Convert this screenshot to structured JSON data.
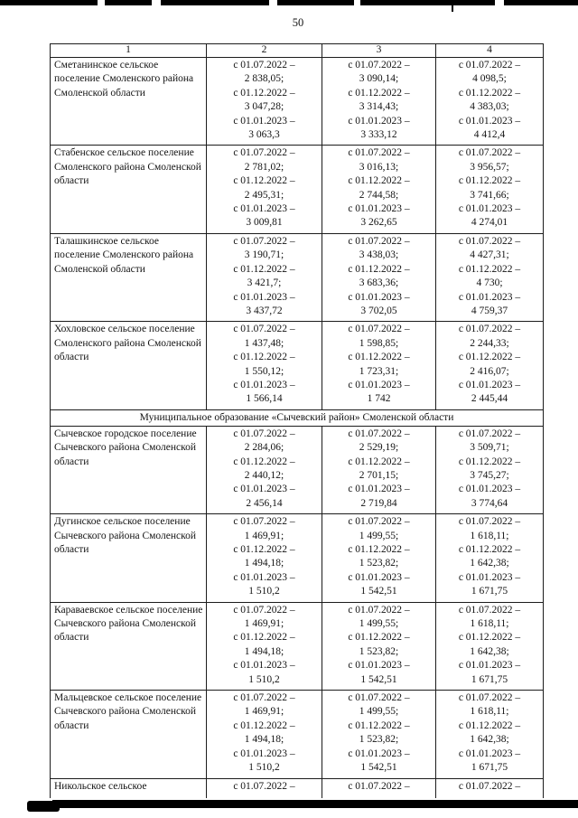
{
  "page": {
    "number": "50"
  },
  "table": {
    "headers": [
      "1",
      "2",
      "3",
      "4"
    ],
    "sections": [
      {
        "title": null,
        "rows": [
          {
            "name": "Сметанинское сельское поселение Смоленского района Смоленской области",
            "cells": [
              [
                "с 01.07.2022 –",
                "2 838,05;",
                "с 01.12.2022 –",
                "3 047,28;",
                "с 01.01.2023 –",
                "3 063,3"
              ],
              [
                "с 01.07.2022 –",
                "3 090,14;",
                "с 01.12.2022 –",
                "3 314,43;",
                "с 01.01.2023 –",
                "3 333,12"
              ],
              [
                "с 01.07.2022 –",
                "4 098,5;",
                "с 01.12.2022 –",
                "4 383,03;",
                "с 01.01.2023 –",
                "4 412,4"
              ]
            ]
          },
          {
            "name": "Стабенское сельское поселение Смоленского района Смоленской области",
            "cells": [
              [
                "с 01.07.2022 –",
                "2 781,02;",
                "с 01.12.2022 –",
                "2 495,31;",
                "с 01.01.2023 –",
                "3 009,81"
              ],
              [
                "с 01.07.2022 –",
                "3 016,13;",
                "с 01.12.2022 –",
                "2 744,58;",
                "с 01.01.2023 –",
                "3 262,65"
              ],
              [
                "с 01.07.2022 –",
                "3 956,57;",
                "с 01.12.2022 –",
                "3 741,66;",
                "с 01.01.2023 –",
                "4 274,01"
              ]
            ]
          },
          {
            "name": "Талашкинское сельское поселение Смоленского района Смоленской области",
            "cells": [
              [
                "с 01.07.2022 –",
                "3 190,71;",
                "с 01.12.2022 –",
                "3 421,7;",
                "с 01.01.2023 –",
                "3 437,72"
              ],
              [
                "с 01.07.2022 –",
                "3 438,03;",
                "с 01.12.2022 –",
                "3 683,36;",
                "с 01.01.2023 –",
                "3 702,05"
              ],
              [
                "с 01.07.2022 –",
                "4 427,31;",
                "с 01.12.2022 –",
                "4 730;",
                "с 01.01.2023 –",
                "4 759,37"
              ]
            ]
          },
          {
            "name": "Хохловское сельское поселение Смоленского района Смоленской области",
            "cells": [
              [
                "с 01.07.2022 –",
                "1 437,48;",
                "с 01.12.2022 –",
                "1 550,12;",
                "с 01.01.2023 –",
                "1 566,14"
              ],
              [
                "с 01.07.2022 –",
                "1 598,85;",
                "с 01.12.2022 –",
                "1 723,31;",
                "с 01.01.2023 –",
                "1 742"
              ],
              [
                "с 01.07.2022 –",
                "2 244,33;",
                "с 01.12.2022 –",
                "2 416,07;",
                "с 01.01.2023 –",
                "2 445,44"
              ]
            ]
          }
        ]
      },
      {
        "title": "Муниципальное образование «Сычевский район» Смоленской области",
        "rows": [
          {
            "name": "Сычевское городское поселение Сычевского района Смоленской области",
            "cells": [
              [
                "с 01.07.2022 –",
                "2 284,06;",
                "с 01.12.2022 –",
                "2 440,12;",
                "с 01.01.2023 –",
                "2 456,14"
              ],
              [
                "с 01.07.2022 –",
                "2 529,19;",
                "с 01.12.2022 –",
                "2 701,15;",
                "с 01.01.2023 –",
                "2 719,84"
              ],
              [
                "с 01.07.2022 –",
                "3 509,71;",
                "с 01.12.2022 –",
                "3 745,27;",
                "с 01.01.2023 –",
                "3 774,64"
              ]
            ]
          },
          {
            "name": "Дугинское сельское поселение Сычевского района Смоленской области",
            "cells": [
              [
                "с 01.07.2022 –",
                "1 469,91;",
                "с 01.12.2022 –",
                "1 494,18;",
                "с 01.01.2023 –",
                "1 510,2"
              ],
              [
                "с 01.07.2022 –",
                "1 499,55;",
                "с 01.12.2022 –",
                "1 523,82;",
                "с 01.01.2023 –",
                "1 542,51"
              ],
              [
                "с 01.07.2022 –",
                "1 618,11;",
                "с 01.12.2022 –",
                "1 642,38;",
                "с 01.01.2023 –",
                "1 671,75"
              ]
            ]
          },
          {
            "name": "Караваевское сельское поселение Сычевского района Смоленской области",
            "cells": [
              [
                "с 01.07.2022 –",
                "1 469,91;",
                "с 01.12.2022 –",
                "1 494,18;",
                "с 01.01.2023 –",
                "1 510,2"
              ],
              [
                "с 01.07.2022 –",
                "1 499,55;",
                "с 01.12.2022 –",
                "1 523,82;",
                "с 01.01.2023 –",
                "1 542,51"
              ],
              [
                "с 01.07.2022 –",
                "1 618,11;",
                "с 01.12.2022 –",
                "1 642,38;",
                "с 01.01.2023 –",
                "1 671,75"
              ]
            ]
          },
          {
            "name": "Мальцевское сельское поселение Сычевского района Смоленской области",
            "cells": [
              [
                "с 01.07.2022 –",
                "1 469,91;",
                "с 01.12.2022 –",
                "1 494,18;",
                "с 01.01.2023 –",
                "1 510,2"
              ],
              [
                "с 01.07.2022 –",
                "1 499,55;",
                "с 01.12.2022 –",
                "1 523,82;",
                "с 01.01.2023 –",
                "1 542,51"
              ],
              [
                "с 01.07.2022 –",
                "1 618,11;",
                "с 01.12.2022 –",
                "1 642,38;",
                "с 01.01.2023 –",
                "1 671,75"
              ]
            ]
          },
          {
            "name": "Никольское сельское",
            "partial": true,
            "cells": [
              [
                "с 01.07.2022 –"
              ],
              [
                "с 01.07.2022 –"
              ],
              [
                "с 01.07.2022 –"
              ]
            ]
          }
        ]
      }
    ]
  }
}
